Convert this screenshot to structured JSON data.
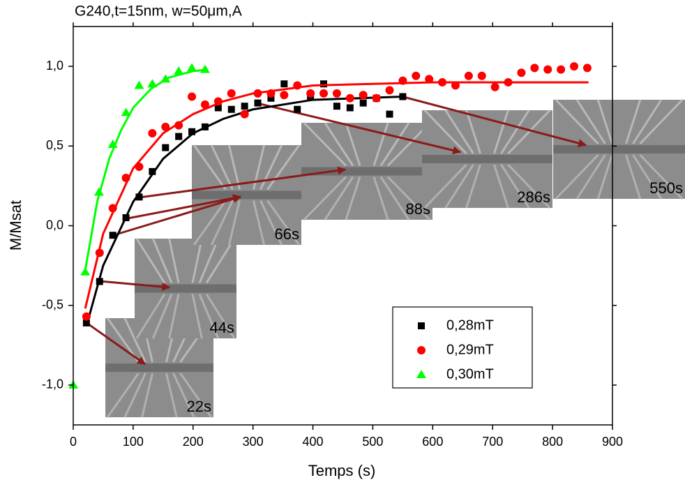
{
  "chart_data": {
    "type": "scatter",
    "title": "G240,t=15nm, w=50μm,A",
    "xlabel": "Temps (s)",
    "ylabel": "M/Msat",
    "xlim": [
      0,
      900
    ],
    "ylim": [
      -1.25,
      1.25
    ],
    "xticks": [
      0,
      100,
      200,
      300,
      400,
      500,
      600,
      700,
      800,
      900
    ],
    "yticks": [
      {
        "value": -1.0,
        "label": "-1,0"
      },
      {
        "value": -0.5,
        "label": "-0,5"
      },
      {
        "value": 0.0,
        "label": "0,0"
      },
      {
        "value": 0.5,
        "label": "0,5"
      },
      {
        "value": 1.0,
        "label": "1,0"
      }
    ],
    "series": [
      {
        "name": "0,28mT",
        "color": "#000000",
        "marker": "square",
        "x": [
          22,
          44,
          66,
          88,
          110,
          132,
          154,
          176,
          198,
          220,
          242,
          264,
          286,
          308,
          330,
          352,
          374,
          396,
          418,
          440,
          462,
          484,
          506,
          528,
          550
        ],
        "values": [
          -0.61,
          -0.35,
          -0.06,
          0.05,
          0.18,
          0.34,
          0.49,
          0.56,
          0.59,
          0.62,
          0.74,
          0.73,
          0.75,
          0.77,
          0.8,
          0.89,
          0.73,
          0.81,
          0.89,
          0.75,
          0.74,
          0.77,
          0.8,
          0.7,
          0.81
        ],
        "fit_x": [
          22,
          50,
          100,
          150,
          200,
          250,
          300,
          400,
          550
        ],
        "fit_values": [
          -0.63,
          -0.25,
          0.15,
          0.42,
          0.58,
          0.67,
          0.73,
          0.79,
          0.81
        ]
      },
      {
        "name": "0,29mT",
        "color": "#ff0000",
        "marker": "circle",
        "x": [
          22,
          44,
          66,
          88,
          110,
          132,
          154,
          176,
          198,
          220,
          242,
          264,
          286,
          308,
          330,
          352,
          374,
          396,
          418,
          440,
          462,
          484,
          506,
          528,
          550,
          572,
          594,
          616,
          638,
          660,
          682,
          704,
          726,
          748,
          770,
          792,
          814,
          836,
          858
        ],
        "values": [
          -0.57,
          -0.17,
          0.11,
          0.3,
          0.37,
          0.58,
          0.62,
          0.63,
          0.81,
          0.76,
          0.78,
          0.83,
          0.7,
          0.83,
          0.83,
          0.82,
          0.88,
          0.83,
          0.83,
          0.83,
          0.8,
          0.82,
          0.8,
          0.85,
          0.91,
          0.94,
          0.92,
          0.9,
          0.88,
          0.94,
          0.94,
          0.87,
          0.9,
          0.96,
          0.99,
          0.98,
          0.98,
          1.0,
          0.99
        ],
        "fit_x": [
          20,
          50,
          100,
          150,
          200,
          250,
          300,
          400,
          500,
          600,
          860
        ],
        "fit_values": [
          -0.52,
          -0.05,
          0.36,
          0.58,
          0.7,
          0.78,
          0.83,
          0.88,
          0.89,
          0.9,
          0.9
        ]
      },
      {
        "name": "0,30mT",
        "color": "#00ff00",
        "marker": "triangle",
        "x": [
          0,
          20,
          43,
          66,
          88,
          110,
          132,
          154,
          176,
          198,
          220
        ],
        "values": [
          -1.0,
          -0.29,
          0.21,
          0.51,
          0.71,
          0.88,
          0.89,
          0.92,
          0.97,
          0.99,
          0.98
        ],
        "fit_x": [
          20,
          40,
          60,
          80,
          100,
          130,
          160,
          200,
          225
        ],
        "fit_values": [
          -0.28,
          0.15,
          0.42,
          0.6,
          0.74,
          0.86,
          0.93,
          0.97,
          0.98
        ]
      }
    ],
    "insets": [
      {
        "label": "22s"
      },
      {
        "label": "44s"
      },
      {
        "label": "66s"
      },
      {
        "label": "88s"
      },
      {
        "label": "286s"
      },
      {
        "label": "550s"
      }
    ]
  }
}
